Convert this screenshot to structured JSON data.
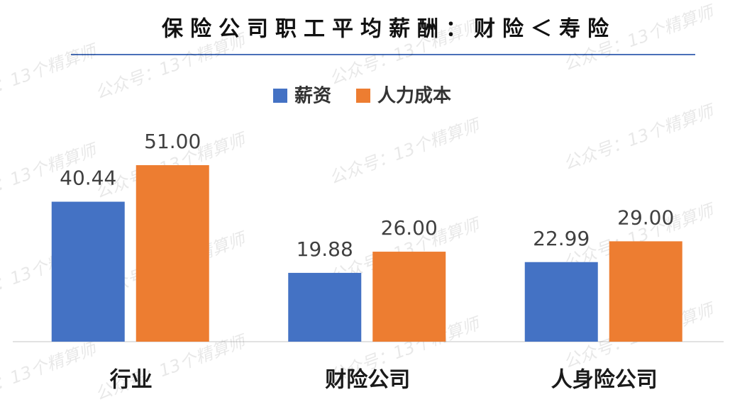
{
  "chart_data": {
    "type": "bar",
    "title": "保险公司职工平均薪酬：财险＜寿险",
    "categories": [
      "行业",
      "财险公司",
      "人身险公司"
    ],
    "series": [
      {
        "name": "薪资",
        "color": "#4472c4",
        "values": [
          40.44,
          19.88,
          22.99
        ],
        "value_labels": [
          "40.44",
          "19.88",
          "22.99"
        ]
      },
      {
        "name": "人力成本",
        "color": "#ed7d31",
        "values": [
          51,
          26,
          29
        ],
        "value_labels": [
          "51.00",
          "26.00",
          "29.00"
        ]
      }
    ],
    "legend": "top"
  },
  "watermark": "公众号：13个精算师"
}
